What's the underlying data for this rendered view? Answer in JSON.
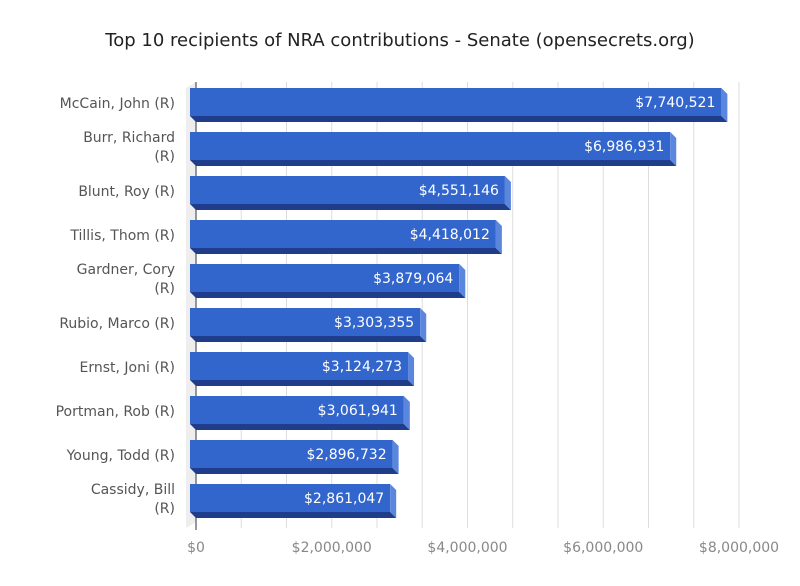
{
  "chart_data": {
    "type": "bar",
    "orientation": "horizontal",
    "title": "Top 10 recipients of NRA contributions - Senate (opensecrets.org)",
    "categories": [
      "McCain, John (R)",
      "Burr, Richard (R)",
      "Blunt, Roy (R)",
      "Tillis, Thom (R)",
      "Gardner, Cory (R)",
      "Rubio, Marco (R)",
      "Ernst, Joni (R)",
      "Portman, Rob (R)",
      "Young, Todd (R)",
      "Cassidy, Bill (R)"
    ],
    "values": [
      7740521,
      6986931,
      4551146,
      4418012,
      3879064,
      3303355,
      3124273,
      3061941,
      2896732,
      2861047
    ],
    "data_labels": [
      "$7,740,521",
      "$6,986,931",
      "$4,551,146",
      "$4,418,012",
      "$3,879,064",
      "$3,303,355",
      "$3,124,273",
      "$3,061,941",
      "$2,896,732",
      "$2,861,047"
    ],
    "xlim": [
      0,
      8000000
    ],
    "x_ticks": [
      0,
      2000000,
      4000000,
      6000000,
      8000000
    ],
    "x_tick_labels": [
      "$0",
      "$2,000,000",
      "$4,000,000",
      "$6,000,000",
      "$8,000,000"
    ],
    "grid": true,
    "style": "3d",
    "colors": {
      "bar": "#3366cc",
      "bar_bottom": "#1f3d8a",
      "bar_side": "#5a86dd",
      "grid": "#dddddd",
      "label": "#555555",
      "tick_label": "#888888"
    }
  }
}
